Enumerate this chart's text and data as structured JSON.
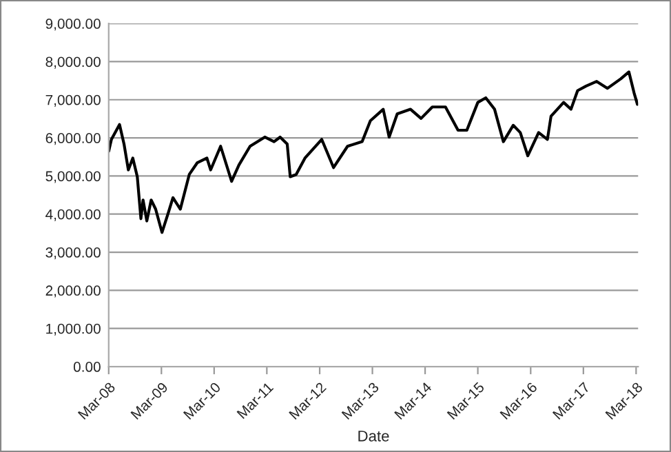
{
  "chart_data": {
    "type": "line",
    "xlabel": "Date",
    "x": [
      "2008-03-01",
      "2008-03-20",
      "2008-05-15",
      "2008-06-15",
      "2008-07-15",
      "2008-08-15",
      "2008-09-15",
      "2008-10-10",
      "2008-10-25",
      "2008-11-20",
      "2008-12-20",
      "2009-01-20",
      "2009-03-05",
      "2009-04-15",
      "2009-05-20",
      "2009-07-10",
      "2009-09-10",
      "2009-11-05",
      "2010-01-10",
      "2010-02-05",
      "2010-04-15",
      "2010-06-30",
      "2010-08-20",
      "2010-11-05",
      "2011-02-15",
      "2011-04-20",
      "2011-06-01",
      "2011-07-20",
      "2011-08-10",
      "2011-09-20",
      "2011-11-20",
      "2012-03-15",
      "2012-06-05",
      "2012-09-10",
      "2012-12-20",
      "2013-02-15",
      "2013-05-15",
      "2013-06-25",
      "2013-08-20",
      "2013-11-20",
      "2014-02-01",
      "2014-04-20",
      "2014-07-20",
      "2014-10-15",
      "2014-12-15",
      "2015-03-01",
      "2015-04-25",
      "2015-06-25",
      "2015-08-25",
      "2015-11-01",
      "2015-12-20",
      "2016-02-10",
      "2016-04-25",
      "2016-06-25",
      "2016-07-20",
      "2016-10-15",
      "2016-12-05",
      "2017-01-20",
      "2017-03-20",
      "2017-06-01",
      "2017-08-15",
      "2017-11-15",
      "2018-01-10",
      "2018-02-15",
      "2018-03-10"
    ],
    "series": [
      {
        "color": "#000000",
        "values": [
          5650,
          5960,
          6350,
          5840,
          5160,
          5470,
          4980,
          3880,
          4370,
          3820,
          4370,
          4130,
          3520,
          4000,
          4430,
          4130,
          5040,
          5350,
          5470,
          5160,
          5780,
          4860,
          5290,
          5780,
          6020,
          5900,
          6020,
          5840,
          4980,
          5040,
          5470,
          5960,
          5220,
          5780,
          5900,
          6450,
          6750,
          6020,
          6630,
          6750,
          6510,
          6810,
          6810,
          6200,
          6200,
          6930,
          7050,
          6750,
          5900,
          6330,
          6140,
          5530,
          6140,
          5960,
          6570,
          6930,
          6750,
          7240,
          7360,
          7480,
          7300,
          7550,
          7730,
          7180,
          6880
        ]
      }
    ],
    "xlim": [
      "2008-03-01",
      "2018-03-15"
    ],
    "xticks": [
      {
        "value": "2008-03-01",
        "label": "Mar-08"
      },
      {
        "value": "2009-03-01",
        "label": "Mar-09"
      },
      {
        "value": "2010-03-01",
        "label": "Mar-10"
      },
      {
        "value": "2011-03-01",
        "label": "Mar-11"
      },
      {
        "value": "2012-03-01",
        "label": "Mar-12"
      },
      {
        "value": "2013-03-01",
        "label": "Mar-13"
      },
      {
        "value": "2014-03-01",
        "label": "Mar-14"
      },
      {
        "value": "2015-03-01",
        "label": "Mar-15"
      },
      {
        "value": "2016-03-01",
        "label": "Mar-16"
      },
      {
        "value": "2017-03-01",
        "label": "Mar-17"
      },
      {
        "value": "2018-03-01",
        "label": "Mar-18"
      }
    ],
    "ylim": [
      0,
      9000
    ],
    "yticks": [
      {
        "value": 0,
        "label": "0.00"
      },
      {
        "value": 1000,
        "label": "1,000.00"
      },
      {
        "value": 2000,
        "label": "2,000.00"
      },
      {
        "value": 3000,
        "label": "3,000.00"
      },
      {
        "value": 4000,
        "label": "4,000.00"
      },
      {
        "value": 5000,
        "label": "5,000.00"
      },
      {
        "value": 6000,
        "label": "6,000.00"
      },
      {
        "value": 7000,
        "label": "7,000.00"
      },
      {
        "value": 8000,
        "label": "8,000.00"
      },
      {
        "value": 9000,
        "label": "9,000.00"
      }
    ],
    "grid": "y",
    "marker": "none",
    "line_style": "solid"
  }
}
